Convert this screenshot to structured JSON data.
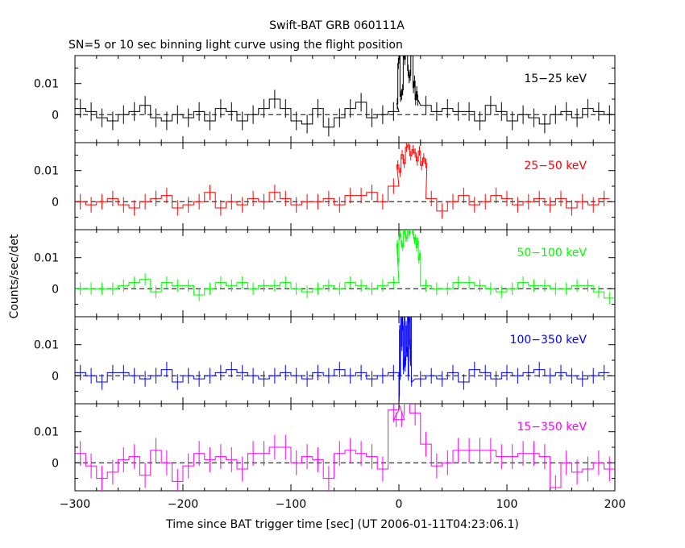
{
  "chart_data": {
    "type": "line",
    "title": "Swift-BAT GRB 060111A",
    "subtitle": "SN=5 or 10 sec binning light curve using the flight position",
    "xlabel": "Time since BAT trigger time [sec] (UT 2006-01-11T04:23:06.1)",
    "ylabel": "Counts/sec/det",
    "xlim": [
      -300,
      200
    ],
    "x_ticks": [
      -300,
      -200,
      -100,
      0,
      100,
      200
    ],
    "x_tick_labels": [
      "−300",
      "−200",
      "−100",
      "0",
      "100",
      "200"
    ],
    "ylim": [
      -0.009,
      0.019
    ],
    "y_ticks": [
      0,
      0.01
    ],
    "y_tick_labels": [
      "0",
      "0.01"
    ],
    "panels": [
      {
        "name": "15-25 keV",
        "label": "15−25 keV",
        "color": "#000000",
        "burst_start": -2,
        "burst_end": 18,
        "burst_bin": 1,
        "burst_amp": 0.017,
        "burst_noise": 0.008,
        "times": [
          -295,
          -285,
          -275,
          -265,
          -255,
          -245,
          -235,
          -225,
          -215,
          -205,
          -195,
          -185,
          -175,
          -165,
          -155,
          -145,
          -135,
          -125,
          -115,
          -105,
          -95,
          -85,
          -75,
          -65,
          -55,
          -45,
          -35,
          -25,
          -15,
          -5,
          25,
          35,
          45,
          55,
          65,
          75,
          85,
          95,
          105,
          115,
          125,
          135,
          145,
          155,
          165,
          175,
          185,
          195
        ],
        "values": [
          0.002,
          0.001,
          -0.001,
          -0.002,
          0.0,
          0.001,
          0.003,
          -0.001,
          -0.002,
          0.0,
          -0.001,
          0.001,
          -0.002,
          0.002,
          0.001,
          -0.002,
          0.0,
          0.002,
          0.005,
          0.002,
          -0.002,
          -0.003,
          0.002,
          -0.004,
          -0.001,
          0.002,
          0.004,
          -0.001,
          0.0,
          0.001,
          0.003,
          0.001,
          0.002,
          0.001,
          0.001,
          -0.002,
          0.003,
          0.001,
          -0.002,
          0.0,
          -0.001,
          -0.003,
          0.0,
          0.001,
          -0.001,
          0.002,
          0.001,
          0.0
        ],
        "errors": 0.003
      },
      {
        "name": "25-50 keV",
        "label": "25−50 keV",
        "color": "#ff0000",
        "burst_start": -2,
        "burst_end": 26,
        "burst_bin": 2,
        "burst_amp": 0.016,
        "burst_noise": 0.003,
        "times": [
          -295,
          -285,
          -275,
          -265,
          -255,
          -245,
          -235,
          -225,
          -215,
          -205,
          -195,
          -185,
          -175,
          -165,
          -155,
          -145,
          -135,
          -125,
          -115,
          -105,
          -95,
          -85,
          -75,
          -65,
          -55,
          -45,
          -35,
          -25,
          -15,
          -5,
          30,
          40,
          50,
          60,
          70,
          80,
          90,
          100,
          110,
          120,
          130,
          140,
          150,
          160,
          170,
          180,
          190
        ],
        "values": [
          0.0,
          -0.001,
          0.0,
          0.001,
          -0.001,
          -0.002,
          0.0,
          0.001,
          0.002,
          -0.002,
          -0.001,
          0.0,
          0.003,
          -0.002,
          0.0,
          -0.001,
          0.001,
          0.0,
          0.003,
          0.001,
          -0.001,
          0.0,
          0.0,
          0.001,
          -0.001,
          0.002,
          0.002,
          0.003,
          0.0,
          0.005,
          0.001,
          -0.003,
          0.0,
          0.002,
          -0.001,
          0.0,
          0.002,
          0.001,
          -0.001,
          0.0,
          0.001,
          -0.001,
          0.001,
          -0.002,
          0.0,
          -0.001,
          0.001
        ],
        "errors": 0.0025
      },
      {
        "name": "50-100 keV",
        "label": "50−100 keV",
        "color": "#00ff00",
        "burst_start": -2,
        "burst_end": 20,
        "burst_bin": 1,
        "burst_amp": 0.019,
        "burst_noise": 0.004,
        "times": [
          -295,
          -285,
          -275,
          -265,
          -255,
          -245,
          -235,
          -225,
          -215,
          -205,
          -195,
          -185,
          -175,
          -165,
          -155,
          -145,
          -135,
          -125,
          -115,
          -105,
          -95,
          -85,
          -75,
          -65,
          -55,
          -45,
          -35,
          -25,
          -15,
          -5,
          25,
          35,
          45,
          55,
          65,
          75,
          85,
          95,
          105,
          115,
          125,
          135,
          145,
          155,
          165,
          175,
          185,
          195
        ],
        "values": [
          0.0,
          0.0,
          0.0,
          0.0,
          0.001,
          0.002,
          0.003,
          -0.001,
          0.002,
          0.001,
          0.001,
          -0.002,
          0.0,
          0.002,
          0.001,
          0.002,
          0.0,
          0.001,
          0.001,
          0.002,
          0.0,
          -0.001,
          0.0,
          0.001,
          0.0,
          0.002,
          0.001,
          0.0,
          0.001,
          0.002,
          0.001,
          0.0,
          0.0,
          0.002,
          0.002,
          0.001,
          0.0,
          -0.001,
          0.0,
          0.002,
          0.001,
          0.001,
          0.0,
          0.0,
          0.001,
          0.001,
          -0.001,
          -0.003
        ],
        "errors": 0.002
      },
      {
        "name": "100-350 keV",
        "label": "100−350 keV",
        "color": "#0000ff",
        "burst_start": 0,
        "burst_end": 12,
        "burst_bin": 0.5,
        "burst_amp": 0.019,
        "burst_noise": 0.02,
        "times": [
          -295,
          -285,
          -275,
          -265,
          -255,
          -245,
          -235,
          -225,
          -215,
          -205,
          -195,
          -185,
          -175,
          -165,
          -155,
          -145,
          -135,
          -125,
          -115,
          -105,
          -95,
          -85,
          -75,
          -65,
          -55,
          -45,
          -35,
          -25,
          -15,
          -5,
          20,
          30,
          40,
          50,
          60,
          70,
          80,
          90,
          100,
          110,
          120,
          130,
          140,
          150,
          160,
          170,
          180,
          190
        ],
        "values": [
          0.001,
          0.0,
          -0.002,
          0.001,
          0.001,
          0.0,
          -0.001,
          0.0,
          0.002,
          -0.002,
          0.0,
          -0.001,
          0.0,
          0.001,
          0.002,
          0.001,
          0.0,
          -0.001,
          0.0,
          0.001,
          0.0,
          -0.001,
          0.001,
          0.0,
          0.002,
          0.0,
          0.001,
          -0.001,
          0.0,
          0.001,
          -0.001,
          0.0,
          -0.001,
          0.001,
          -0.002,
          0.002,
          0.001,
          -0.001,
          0.001,
          0.0,
          0.001,
          0.002,
          0.0,
          0.001,
          0.0,
          -0.001,
          0.0,
          0.001
        ],
        "errors": 0.0025
      },
      {
        "name": "15-350 keV",
        "label": "15−350 keV",
        "color": "#ff00ff",
        "burst_start": -5,
        "burst_end": 5,
        "burst_bin": 5,
        "burst_amp": 0.016,
        "burst_noise": 0.0,
        "times": [
          -295,
          -285,
          -275,
          -265,
          -255,
          -245,
          -235,
          -225,
          -215,
          -205,
          -195,
          -185,
          -175,
          -165,
          -155,
          -145,
          -135,
          -125,
          -115,
          -105,
          -95,
          -85,
          -75,
          -65,
          -55,
          -45,
          -35,
          -25,
          -15,
          -5,
          5,
          15,
          25,
          35,
          45,
          55,
          65,
          75,
          85,
          95,
          105,
          115,
          125,
          135,
          145,
          155,
          165,
          175,
          185,
          195
        ],
        "values": [
          0.003,
          -0.001,
          -0.005,
          -0.003,
          0.001,
          0.002,
          -0.004,
          0.004,
          0.0,
          -0.006,
          -0.001,
          0.003,
          0.001,
          0.002,
          0.001,
          -0.002,
          0.003,
          0.003,
          0.005,
          0.005,
          0.0,
          0.002,
          0.001,
          -0.005,
          0.003,
          0.004,
          0.003,
          0.002,
          -0.002,
          0.017,
          0.019,
          0.016,
          0.006,
          -0.001,
          0.0,
          0.004,
          0.004,
          0.004,
          0.004,
          0.002,
          0.002,
          0.003,
          0.003,
          0.002,
          -0.008,
          0.0,
          -0.003,
          -0.002,
          0.0,
          -0.002
        ],
        "errors": 0.004
      }
    ]
  }
}
